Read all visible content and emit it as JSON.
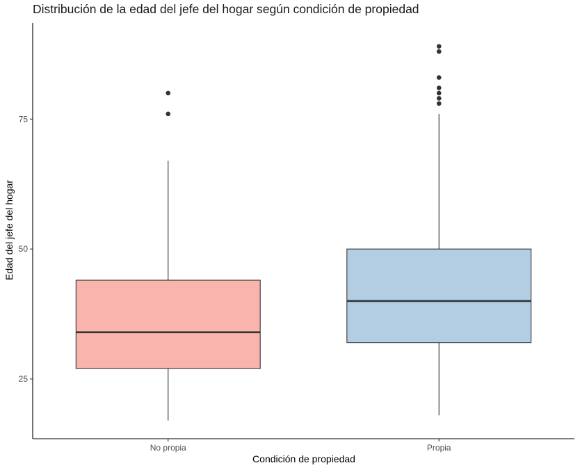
{
  "chart_data": {
    "type": "boxplot",
    "title": "Distribución de la edad del jefe del hogar según condición de propiedad",
    "xlabel": "Condición de propiedad",
    "ylabel": "Edad del jefe del hogar",
    "ylim": [
      13.5,
      93.5
    ],
    "yticks": [
      25,
      50,
      75
    ],
    "grid": false,
    "legend": "none",
    "categories": [
      "No propia",
      "Propia"
    ],
    "boxes": [
      {
        "category": "No propia",
        "whisker_low": 17,
        "q1": 27,
        "median": 34,
        "q3": 44,
        "whisker_high": 67,
        "outliers": [
          76,
          80
        ],
        "fill": "#F8B4AD"
      },
      {
        "category": "Propia",
        "whisker_low": 18,
        "q1": 32,
        "median": 40,
        "q3": 50,
        "whisker_high": 76,
        "outliers": [
          78,
          79,
          80,
          81,
          83,
          88,
          89
        ],
        "fill": "#B3CDE3"
      }
    ],
    "box_edge_color": "#333333",
    "outlier_color": "#333333"
  }
}
